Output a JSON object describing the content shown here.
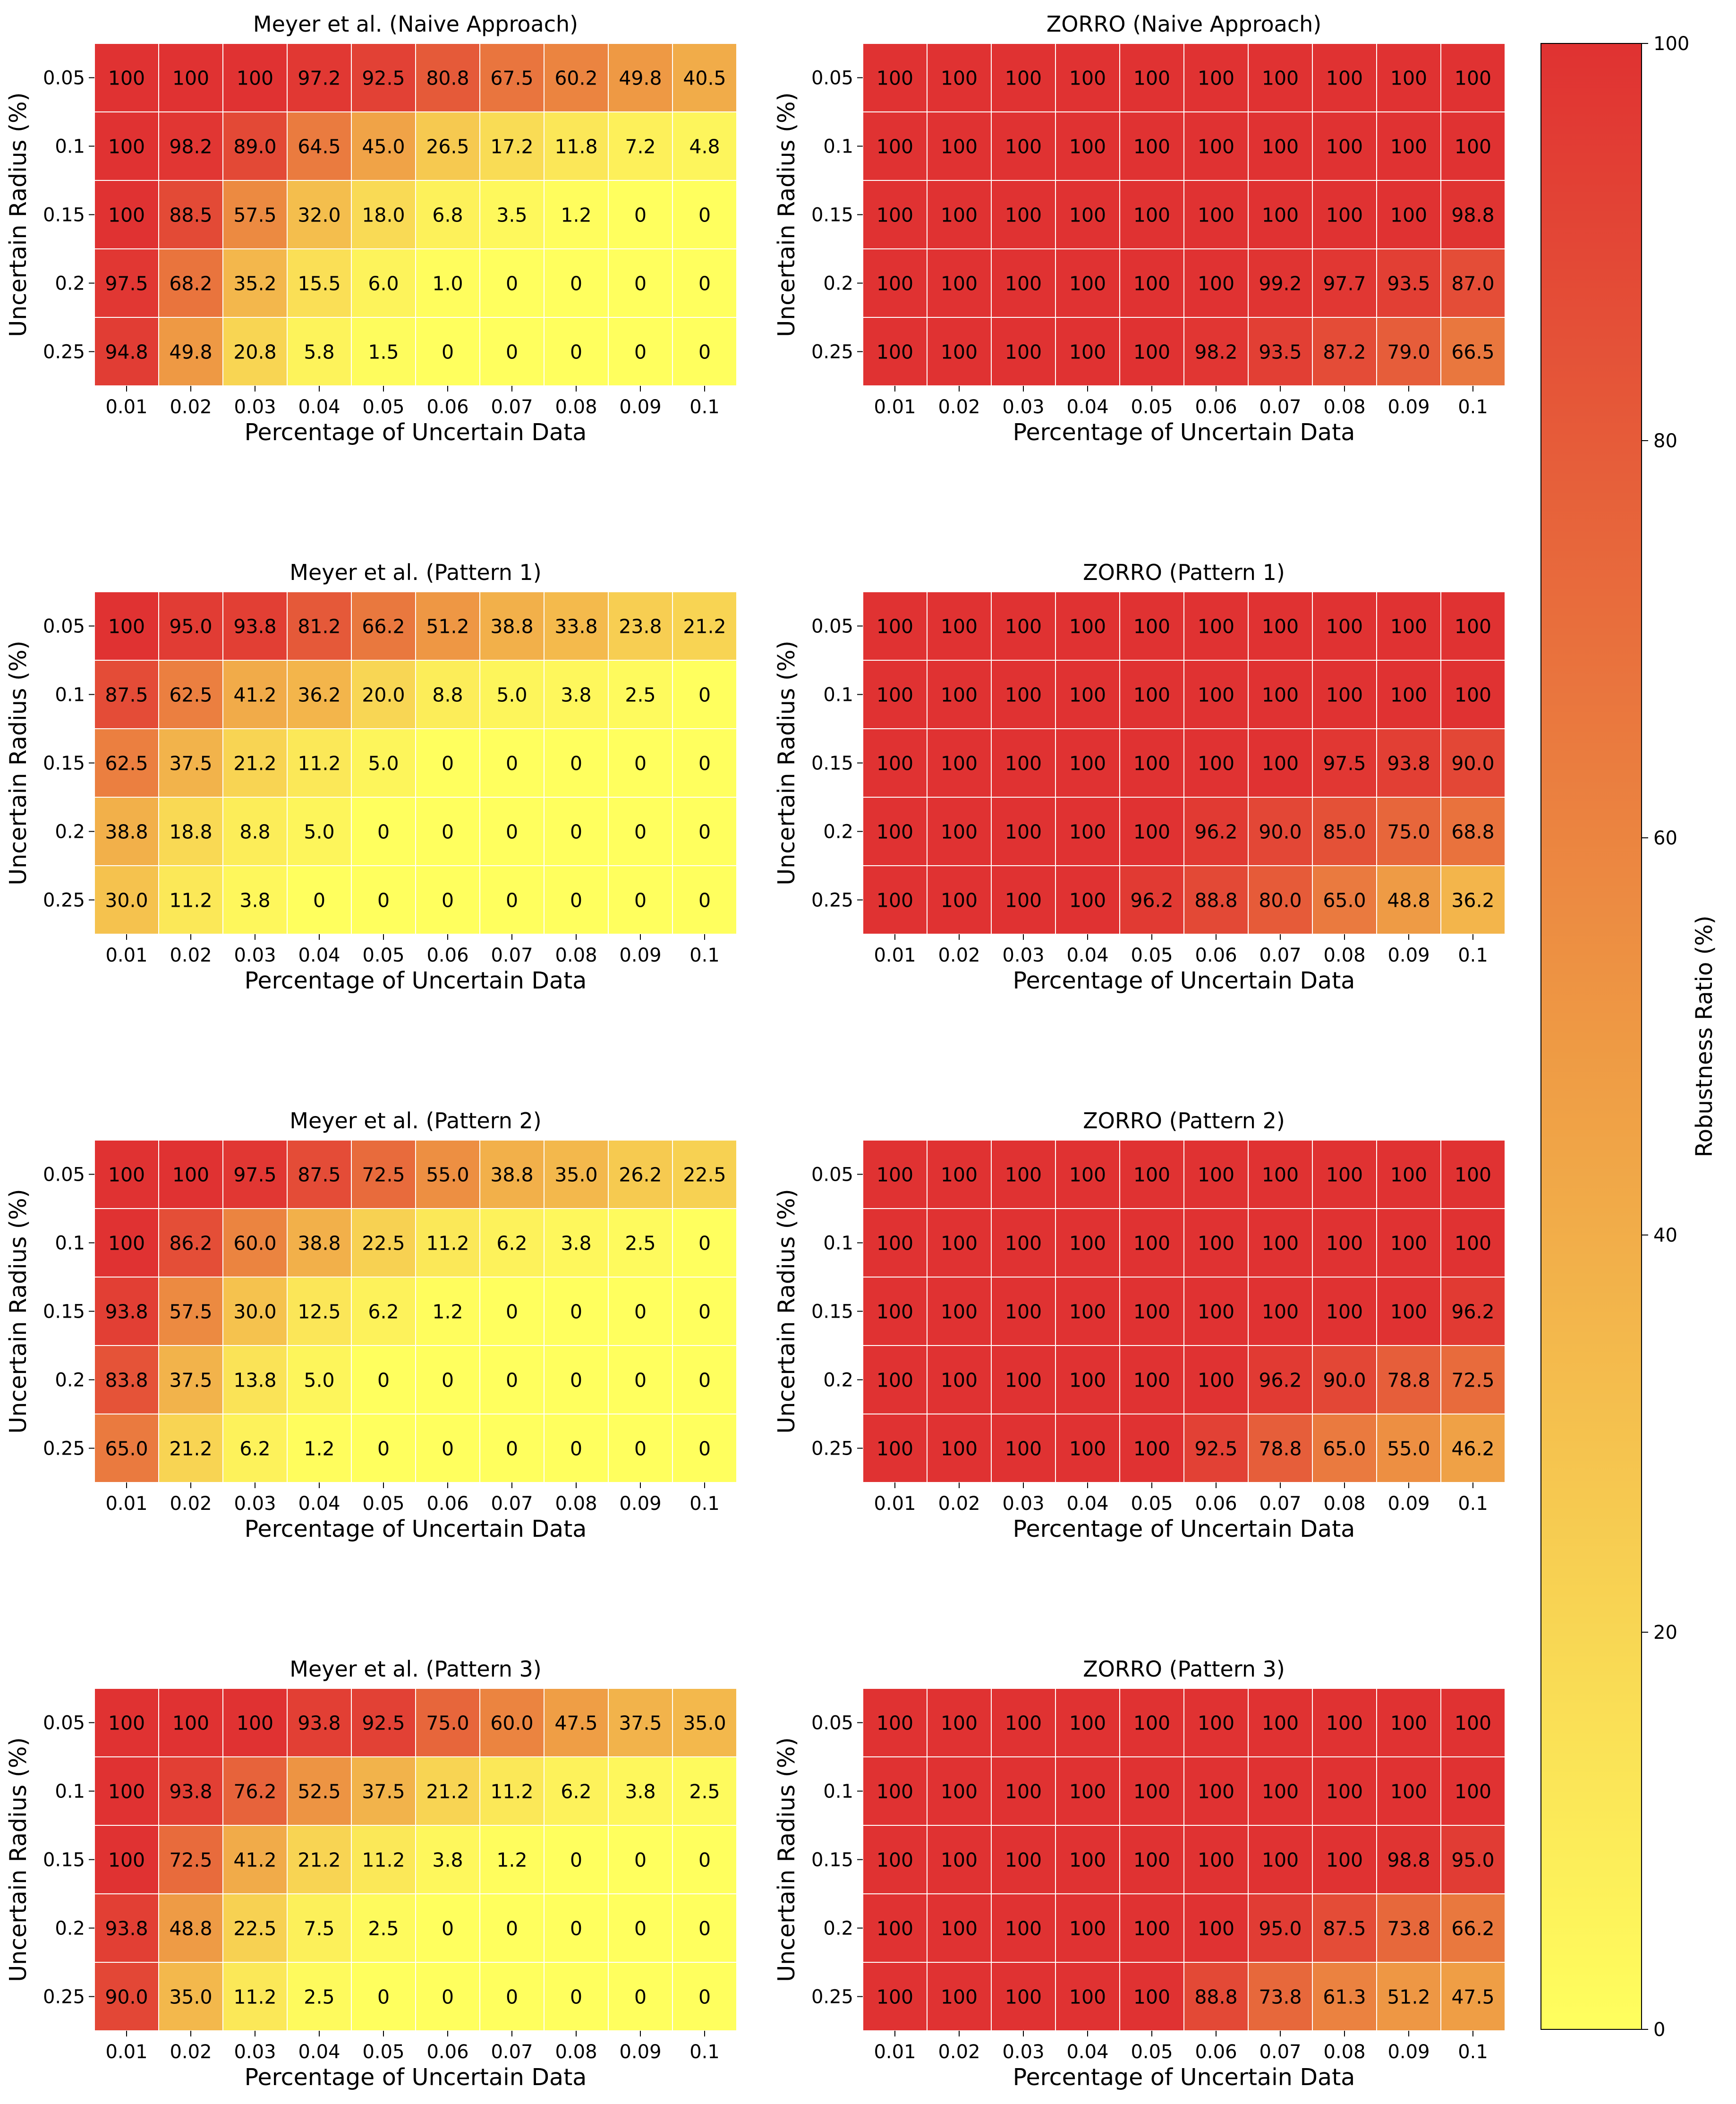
{
  "chart_data": [
    {
      "type": "heatmap",
      "title": "Meyer et al. (Naive Approach)",
      "xlabel": "Percentage of Uncertain Data",
      "ylabel": "Uncertain Radius (%)",
      "x": [
        "0.01",
        "0.02",
        "0.03",
        "0.04",
        "0.05",
        "0.06",
        "0.07",
        "0.08",
        "0.09",
        "0.1"
      ],
      "y": [
        "0.05",
        "0.1",
        "0.15",
        "0.2",
        "0.25"
      ],
      "values": [
        [
          100,
          100,
          100,
          97.2,
          92.5,
          80.8,
          67.5,
          60.2,
          49.8,
          40.5
        ],
        [
          100,
          98.2,
          89.0,
          64.5,
          45.0,
          26.5,
          17.2,
          11.8,
          7.2,
          4.8
        ],
        [
          100,
          88.5,
          57.5,
          32.0,
          18.0,
          6.8,
          3.5,
          1.2,
          0,
          0
        ],
        [
          97.5,
          68.2,
          35.2,
          15.5,
          6.0,
          1.0,
          0,
          0,
          0,
          0
        ],
        [
          94.8,
          49.8,
          20.8,
          5.8,
          1.5,
          0,
          0,
          0,
          0,
          0
        ]
      ],
      "labels": [
        [
          "100",
          "100",
          "100",
          "97.2",
          "92.5",
          "80.8",
          "67.5",
          "60.2",
          "49.8",
          "40.5"
        ],
        [
          "100",
          "98.2",
          "89.0",
          "64.5",
          "45.0",
          "26.5",
          "17.2",
          "11.8",
          "7.2",
          "4.8"
        ],
        [
          "100",
          "88.5",
          "57.5",
          "32.0",
          "18.0",
          "6.8",
          "3.5",
          "1.2",
          "0",
          "0"
        ],
        [
          "97.5",
          "68.2",
          "35.2",
          "15.5",
          "6.0",
          "1.0",
          "0",
          "0",
          "0",
          "0"
        ],
        [
          "94.8",
          "49.8",
          "20.8",
          "5.8",
          "1.5",
          "0",
          "0",
          "0",
          "0",
          "0"
        ]
      ]
    },
    {
      "type": "heatmap",
      "title": "ZORRO (Naive Approach)",
      "xlabel": "Percentage of Uncertain Data",
      "ylabel": "Uncertain Radius (%)",
      "x": [
        "0.01",
        "0.02",
        "0.03",
        "0.04",
        "0.05",
        "0.06",
        "0.07",
        "0.08",
        "0.09",
        "0.1"
      ],
      "y": [
        "0.05",
        "0.1",
        "0.15",
        "0.2",
        "0.25"
      ],
      "values": [
        [
          100,
          100,
          100,
          100,
          100,
          100,
          100,
          100,
          100,
          100
        ],
        [
          100,
          100,
          100,
          100,
          100,
          100,
          100,
          100,
          100,
          100
        ],
        [
          100,
          100,
          100,
          100,
          100,
          100,
          100,
          100,
          100,
          98.8
        ],
        [
          100,
          100,
          100,
          100,
          100,
          100,
          99.2,
          97.7,
          93.5,
          87.0
        ],
        [
          100,
          100,
          100,
          100,
          100,
          98.2,
          93.5,
          87.2,
          79.0,
          66.5
        ]
      ],
      "labels": [
        [
          "100",
          "100",
          "100",
          "100",
          "100",
          "100",
          "100",
          "100",
          "100",
          "100"
        ],
        [
          "100",
          "100",
          "100",
          "100",
          "100",
          "100",
          "100",
          "100",
          "100",
          "100"
        ],
        [
          "100",
          "100",
          "100",
          "100",
          "100",
          "100",
          "100",
          "100",
          "100",
          "98.8"
        ],
        [
          "100",
          "100",
          "100",
          "100",
          "100",
          "100",
          "99.2",
          "97.7",
          "93.5",
          "87.0"
        ],
        [
          "100",
          "100",
          "100",
          "100",
          "100",
          "98.2",
          "93.5",
          "87.2",
          "79.0",
          "66.5"
        ]
      ]
    },
    {
      "type": "heatmap",
      "title": "Meyer et al. (Pattern 1)",
      "xlabel": "Percentage of Uncertain Data",
      "ylabel": "Uncertain Radius (%)",
      "x": [
        "0.01",
        "0.02",
        "0.03",
        "0.04",
        "0.05",
        "0.06",
        "0.07",
        "0.08",
        "0.09",
        "0.1"
      ],
      "y": [
        "0.05",
        "0.1",
        "0.15",
        "0.2",
        "0.25"
      ],
      "values": [
        [
          100,
          95.0,
          93.8,
          81.2,
          66.2,
          51.2,
          38.8,
          33.8,
          23.8,
          21.2
        ],
        [
          87.5,
          62.5,
          41.2,
          36.2,
          20.0,
          8.8,
          5.0,
          3.8,
          2.5,
          0
        ],
        [
          62.5,
          37.5,
          21.2,
          11.2,
          5.0,
          0,
          0,
          0,
          0,
          0
        ],
        [
          38.8,
          18.8,
          8.8,
          5.0,
          0,
          0,
          0,
          0,
          0,
          0
        ],
        [
          30.0,
          11.2,
          3.8,
          0,
          0,
          0,
          0,
          0,
          0,
          0
        ]
      ],
      "labels": [
        [
          "100",
          "95.0",
          "93.8",
          "81.2",
          "66.2",
          "51.2",
          "38.8",
          "33.8",
          "23.8",
          "21.2"
        ],
        [
          "87.5",
          "62.5",
          "41.2",
          "36.2",
          "20.0",
          "8.8",
          "5.0",
          "3.8",
          "2.5",
          "0"
        ],
        [
          "62.5",
          "37.5",
          "21.2",
          "11.2",
          "5.0",
          "0",
          "0",
          "0",
          "0",
          "0"
        ],
        [
          "38.8",
          "18.8",
          "8.8",
          "5.0",
          "0",
          "0",
          "0",
          "0",
          "0",
          "0"
        ],
        [
          "30.0",
          "11.2",
          "3.8",
          "0",
          "0",
          "0",
          "0",
          "0",
          "0",
          "0"
        ]
      ]
    },
    {
      "type": "heatmap",
      "title": "ZORRO (Pattern 1)",
      "xlabel": "Percentage of Uncertain Data",
      "ylabel": "Uncertain Radius (%)",
      "x": [
        "0.01",
        "0.02",
        "0.03",
        "0.04",
        "0.05",
        "0.06",
        "0.07",
        "0.08",
        "0.09",
        "0.1"
      ],
      "y": [
        "0.05",
        "0.1",
        "0.15",
        "0.2",
        "0.25"
      ],
      "values": [
        [
          100,
          100,
          100,
          100,
          100,
          100,
          100,
          100,
          100,
          100
        ],
        [
          100,
          100,
          100,
          100,
          100,
          100,
          100,
          100,
          100,
          100
        ],
        [
          100,
          100,
          100,
          100,
          100,
          100,
          100,
          97.5,
          93.8,
          90.0
        ],
        [
          100,
          100,
          100,
          100,
          100,
          96.2,
          90.0,
          85.0,
          75.0,
          68.8
        ],
        [
          100,
          100,
          100,
          100,
          96.2,
          88.8,
          80.0,
          65.0,
          48.8,
          36.2
        ]
      ],
      "labels": [
        [
          "100",
          "100",
          "100",
          "100",
          "100",
          "100",
          "100",
          "100",
          "100",
          "100"
        ],
        [
          "100",
          "100",
          "100",
          "100",
          "100",
          "100",
          "100",
          "100",
          "100",
          "100"
        ],
        [
          "100",
          "100",
          "100",
          "100",
          "100",
          "100",
          "100",
          "97.5",
          "93.8",
          "90.0"
        ],
        [
          "100",
          "100",
          "100",
          "100",
          "100",
          "96.2",
          "90.0",
          "85.0",
          "75.0",
          "68.8"
        ],
        [
          "100",
          "100",
          "100",
          "100",
          "96.2",
          "88.8",
          "80.0",
          "65.0",
          "48.8",
          "36.2"
        ]
      ]
    },
    {
      "type": "heatmap",
      "title": "Meyer et al. (Pattern 2)",
      "xlabel": "Percentage of Uncertain Data",
      "ylabel": "Uncertain Radius (%)",
      "x": [
        "0.01",
        "0.02",
        "0.03",
        "0.04",
        "0.05",
        "0.06",
        "0.07",
        "0.08",
        "0.09",
        "0.1"
      ],
      "y": [
        "0.05",
        "0.1",
        "0.15",
        "0.2",
        "0.25"
      ],
      "values": [
        [
          100,
          100,
          97.5,
          87.5,
          72.5,
          55.0,
          38.8,
          35.0,
          26.2,
          22.5
        ],
        [
          100,
          86.2,
          60.0,
          38.8,
          22.5,
          11.2,
          6.2,
          3.8,
          2.5,
          0
        ],
        [
          93.8,
          57.5,
          30.0,
          12.5,
          6.2,
          1.2,
          0,
          0,
          0,
          0
        ],
        [
          83.8,
          37.5,
          13.8,
          5.0,
          0,
          0,
          0,
          0,
          0,
          0
        ],
        [
          65.0,
          21.2,
          6.2,
          1.2,
          0,
          0,
          0,
          0,
          0,
          0
        ]
      ],
      "labels": [
        [
          "100",
          "100",
          "97.5",
          "87.5",
          "72.5",
          "55.0",
          "38.8",
          "35.0",
          "26.2",
          "22.5"
        ],
        [
          "100",
          "86.2",
          "60.0",
          "38.8",
          "22.5",
          "11.2",
          "6.2",
          "3.8",
          "2.5",
          "0"
        ],
        [
          "93.8",
          "57.5",
          "30.0",
          "12.5",
          "6.2",
          "1.2",
          "0",
          "0",
          "0",
          "0"
        ],
        [
          "83.8",
          "37.5",
          "13.8",
          "5.0",
          "0",
          "0",
          "0",
          "0",
          "0",
          "0"
        ],
        [
          "65.0",
          "21.2",
          "6.2",
          "1.2",
          "0",
          "0",
          "0",
          "0",
          "0",
          "0"
        ]
      ]
    },
    {
      "type": "heatmap",
      "title": "ZORRO (Pattern 2)",
      "xlabel": "Percentage of Uncertain Data",
      "ylabel": "Uncertain Radius (%)",
      "x": [
        "0.01",
        "0.02",
        "0.03",
        "0.04",
        "0.05",
        "0.06",
        "0.07",
        "0.08",
        "0.09",
        "0.1"
      ],
      "y": [
        "0.05",
        "0.1",
        "0.15",
        "0.2",
        "0.25"
      ],
      "values": [
        [
          100,
          100,
          100,
          100,
          100,
          100,
          100,
          100,
          100,
          100
        ],
        [
          100,
          100,
          100,
          100,
          100,
          100,
          100,
          100,
          100,
          100
        ],
        [
          100,
          100,
          100,
          100,
          100,
          100,
          100,
          100,
          100,
          96.2
        ],
        [
          100,
          100,
          100,
          100,
          100,
          100,
          96.2,
          90.0,
          78.8,
          72.5
        ],
        [
          100,
          100,
          100,
          100,
          100,
          92.5,
          78.8,
          65.0,
          55.0,
          46.2
        ]
      ],
      "labels": [
        [
          "100",
          "100",
          "100",
          "100",
          "100",
          "100",
          "100",
          "100",
          "100",
          "100"
        ],
        [
          "100",
          "100",
          "100",
          "100",
          "100",
          "100",
          "100",
          "100",
          "100",
          "100"
        ],
        [
          "100",
          "100",
          "100",
          "100",
          "100",
          "100",
          "100",
          "100",
          "100",
          "96.2"
        ],
        [
          "100",
          "100",
          "100",
          "100",
          "100",
          "100",
          "96.2",
          "90.0",
          "78.8",
          "72.5"
        ],
        [
          "100",
          "100",
          "100",
          "100",
          "100",
          "92.5",
          "78.8",
          "65.0",
          "55.0",
          "46.2"
        ]
      ]
    },
    {
      "type": "heatmap",
      "title": "Meyer et al. (Pattern 3)",
      "xlabel": "Percentage of Uncertain Data",
      "ylabel": "Uncertain Radius (%)",
      "x": [
        "0.01",
        "0.02",
        "0.03",
        "0.04",
        "0.05",
        "0.06",
        "0.07",
        "0.08",
        "0.09",
        "0.1"
      ],
      "y": [
        "0.05",
        "0.1",
        "0.15",
        "0.2",
        "0.25"
      ],
      "values": [
        [
          100,
          100,
          100,
          93.8,
          92.5,
          75.0,
          60.0,
          47.5,
          37.5,
          35.0
        ],
        [
          100,
          93.8,
          76.2,
          52.5,
          37.5,
          21.2,
          11.2,
          6.2,
          3.8,
          2.5
        ],
        [
          100,
          72.5,
          41.2,
          21.2,
          11.2,
          3.8,
          1.2,
          0,
          0,
          0
        ],
        [
          93.8,
          48.8,
          22.5,
          7.5,
          2.5,
          0,
          0,
          0,
          0,
          0
        ],
        [
          90.0,
          35.0,
          11.2,
          2.5,
          0,
          0,
          0,
          0,
          0,
          0
        ]
      ],
      "labels": [
        [
          "100",
          "100",
          "100",
          "93.8",
          "92.5",
          "75.0",
          "60.0",
          "47.5",
          "37.5",
          "35.0"
        ],
        [
          "100",
          "93.8",
          "76.2",
          "52.5",
          "37.5",
          "21.2",
          "11.2",
          "6.2",
          "3.8",
          "2.5"
        ],
        [
          "100",
          "72.5",
          "41.2",
          "21.2",
          "11.2",
          "3.8",
          "1.2",
          "0",
          "0",
          "0"
        ],
        [
          "93.8",
          "48.8",
          "22.5",
          "7.5",
          "2.5",
          "0",
          "0",
          "0",
          "0",
          "0"
        ],
        [
          "90.0",
          "35.0",
          "11.2",
          "2.5",
          "0",
          "0",
          "0",
          "0",
          "0",
          "0"
        ]
      ]
    },
    {
      "type": "heatmap",
      "title": "ZORRO (Pattern 3)",
      "xlabel": "Percentage of Uncertain Data",
      "ylabel": "Uncertain Radius (%)",
      "x": [
        "0.01",
        "0.02",
        "0.03",
        "0.04",
        "0.05",
        "0.06",
        "0.07",
        "0.08",
        "0.09",
        "0.1"
      ],
      "y": [
        "0.05",
        "0.1",
        "0.15",
        "0.2",
        "0.25"
      ],
      "values": [
        [
          100,
          100,
          100,
          100,
          100,
          100,
          100,
          100,
          100,
          100
        ],
        [
          100,
          100,
          100,
          100,
          100,
          100,
          100,
          100,
          100,
          100
        ],
        [
          100,
          100,
          100,
          100,
          100,
          100,
          100,
          100,
          98.8,
          95.0
        ],
        [
          100,
          100,
          100,
          100,
          100,
          100,
          95.0,
          87.5,
          73.8,
          66.2
        ],
        [
          100,
          100,
          100,
          100,
          100,
          88.8,
          73.8,
          61.3,
          51.2,
          47.5
        ]
      ],
      "labels": [
        [
          "100",
          "100",
          "100",
          "100",
          "100",
          "100",
          "100",
          "100",
          "100",
          "100"
        ],
        [
          "100",
          "100",
          "100",
          "100",
          "100",
          "100",
          "100",
          "100",
          "100",
          "100"
        ],
        [
          "100",
          "100",
          "100",
          "100",
          "100",
          "100",
          "100",
          "100",
          "98.8",
          "95.0"
        ],
        [
          "100",
          "100",
          "100",
          "100",
          "100",
          "100",
          "95.0",
          "87.5",
          "73.8",
          "66.2"
        ],
        [
          "100",
          "100",
          "100",
          "100",
          "100",
          "88.8",
          "73.8",
          "61.3",
          "51.2",
          "47.5"
        ]
      ]
    }
  ],
  "colorbar": {
    "label": "Robustness Ratio (%)",
    "min": 0,
    "max": 100,
    "ticks": [
      "0",
      "20",
      "40",
      "60",
      "80",
      "100"
    ],
    "tick_values": [
      0,
      20,
      40,
      60,
      80,
      100
    ],
    "color_low": "#ffff5e",
    "color_mid": "#ee9944",
    "color_high": "#e03232"
  }
}
